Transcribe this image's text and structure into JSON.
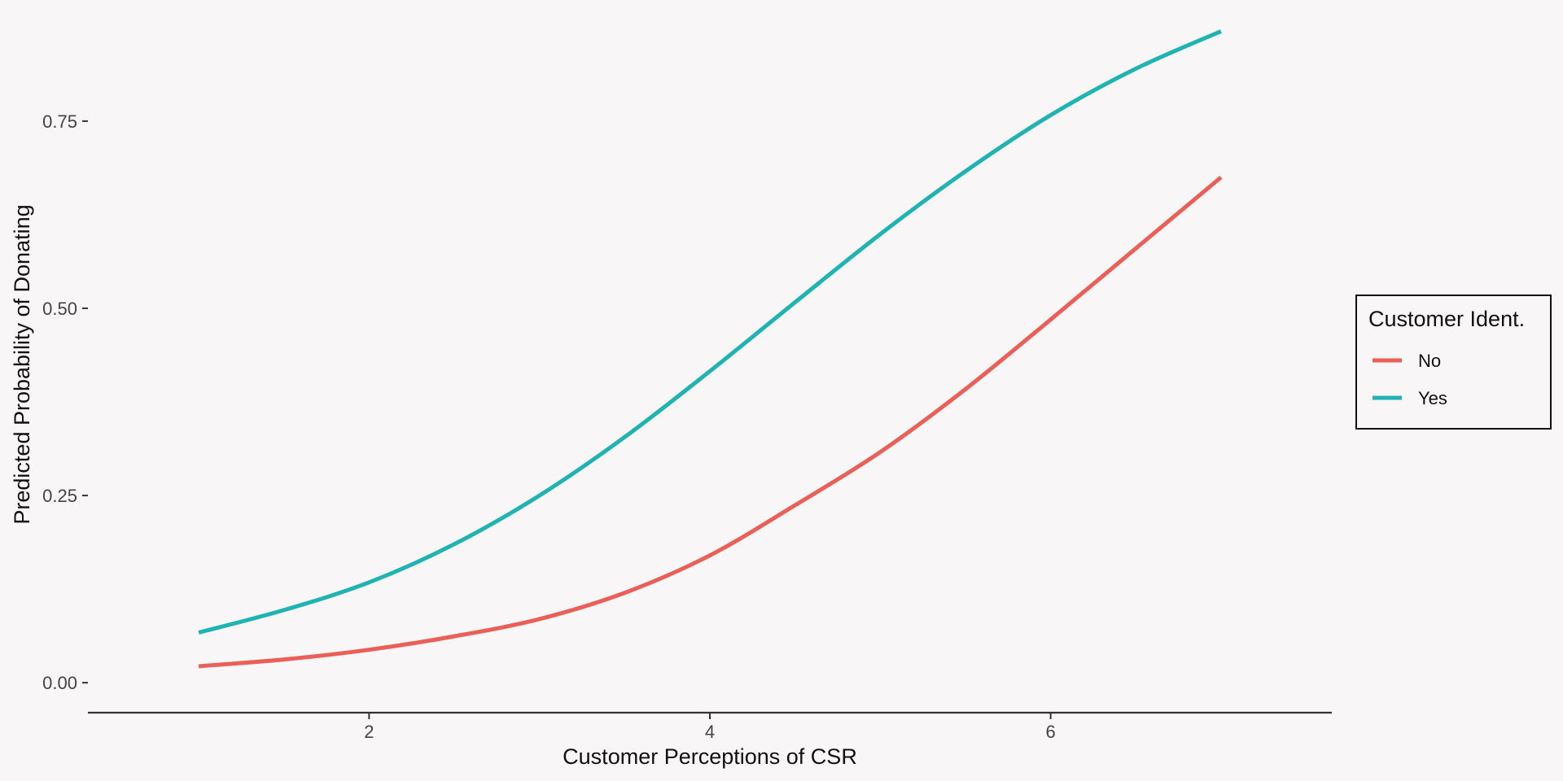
{
  "chart_data": {
    "type": "line",
    "xlabel": "Customer Perceptions of CSR",
    "ylabel": "Predicted Probability of Donating",
    "xlim": [
      0.35,
      7.65
    ],
    "ylim": [
      -0.04,
      0.89
    ],
    "x_ticks": [
      2,
      4,
      6
    ],
    "x_tick_labels": [
      "2",
      "4",
      "6"
    ],
    "y_ticks": [
      0.0,
      0.25,
      0.5,
      0.75
    ],
    "y_tick_labels": [
      "0.00",
      "0.25",
      "0.50",
      "0.75"
    ],
    "grid": false,
    "legend": {
      "title": "Customer Ident.",
      "placement": "right"
    },
    "x": [
      1.0,
      1.5,
      2.0,
      2.5,
      3.0,
      3.5,
      4.0,
      4.5,
      5.0,
      5.5,
      6.0,
      6.5,
      7.0
    ],
    "series": [
      {
        "name": "No",
        "color": "#eb5f59",
        "values": [
          0.022,
          0.031,
          0.044,
          0.062,
          0.085,
          0.12,
          0.17,
          0.237,
          0.308,
          0.392,
          0.485,
          0.58,
          0.675
        ]
      },
      {
        "name": "Yes",
        "color": "#1fb3b3",
        "values": [
          0.067,
          0.097,
          0.134,
          0.185,
          0.25,
          0.328,
          0.416,
          0.508,
          0.599,
          0.683,
          0.758,
          0.82,
          0.87
        ]
      }
    ]
  }
}
